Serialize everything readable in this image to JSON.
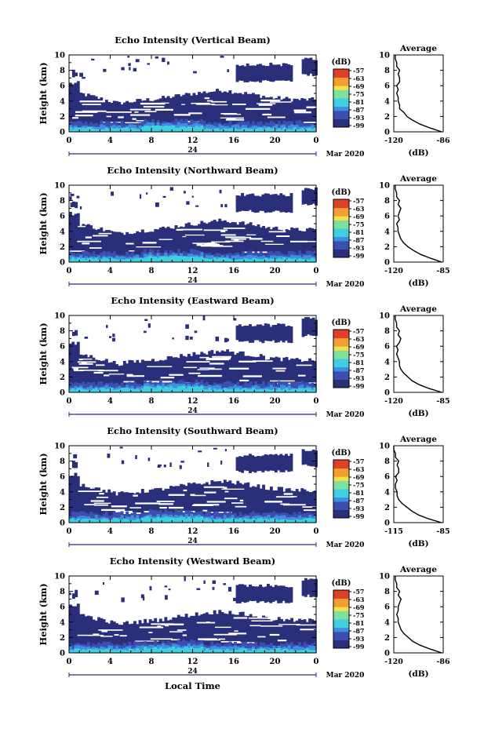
{
  "figure": {
    "xlabel": "Local Time",
    "date_label": "Mar 2020",
    "day_label": "24",
    "colorbar_unit": "(dB)",
    "colorbar_ticks": [
      "-57",
      "-63",
      "-69",
      "-75",
      "-81",
      "-87",
      "-93",
      "-99"
    ],
    "colors": {
      "echo": "#2a2f7a",
      "colorbar": [
        "#2a2f7a",
        "#3c4fb0",
        "#3f8fe0",
        "#3fd0e0",
        "#7fe09f",
        "#f0e04a",
        "#f0a030",
        "#e0402a"
      ]
    }
  },
  "chart_data": [
    {
      "type": "heatmap",
      "title": "Echo Intensity (Vertical Beam)",
      "ylabel": "Height (km)",
      "x_ticks": [
        "0",
        "4",
        "8",
        "12",
        "16",
        "20",
        "0"
      ],
      "y_ticks": [
        "0",
        "2",
        "4",
        "6",
        "8",
        "10"
      ],
      "xlim": [
        0,
        24
      ],
      "ylim": [
        0,
        10
      ],
      "profile": {
        "title": "Average",
        "xlabel": "(dB)",
        "x_ticks": [
          "-120",
          "-86"
        ],
        "y_ticks": [
          "0",
          "2",
          "4",
          "6",
          "8",
          "10"
        ],
        "xlim": [
          -120,
          -86
        ],
        "height": [
          0,
          0.5,
          1,
          1.5,
          2,
          2.5,
          3,
          3.5,
          4,
          4.5,
          5,
          5.5,
          6,
          6.5,
          7,
          7.5,
          8,
          8.5,
          9,
          9.5,
          10
        ],
        "value": [
          -87,
          -95,
          -102,
          -107,
          -111,
          -113,
          -116,
          -116,
          -117,
          -117,
          -118,
          -117,
          -118,
          -116,
          -116,
          -117,
          -116,
          -118,
          -118,
          -119,
          -119
        ]
      }
    },
    {
      "type": "heatmap",
      "title": "Echo Intensity (Northward Beam)",
      "ylabel": "Height (km)",
      "x_ticks": [
        "0",
        "4",
        "8",
        "12",
        "16",
        "20",
        "0"
      ],
      "y_ticks": [
        "0",
        "2",
        "4",
        "6",
        "8",
        "10"
      ],
      "xlim": [
        0,
        24
      ],
      "ylim": [
        0,
        10
      ],
      "profile": {
        "title": "Average",
        "xlabel": "(dB)",
        "x_ticks": [
          "-120",
          "-85"
        ],
        "y_ticks": [
          "0",
          "2",
          "4",
          "6",
          "8",
          "10"
        ],
        "xlim": [
          -120,
          -85
        ],
        "height": [
          0,
          0.5,
          1,
          1.5,
          2,
          2.5,
          3,
          3.5,
          4,
          4.5,
          5,
          5.5,
          6,
          6.5,
          7,
          7.5,
          8,
          8.5,
          9,
          9.5,
          10
        ],
        "value": [
          -86,
          -94,
          -101,
          -106,
          -110,
          -113,
          -115,
          -116,
          -117,
          -117,
          -118,
          -116,
          -117,
          -116,
          -115,
          -117,
          -116,
          -118,
          -118,
          -119,
          -119
        ]
      }
    },
    {
      "type": "heatmap",
      "title": "Echo Intensity (Eastward Beam)",
      "ylabel": "Height (km)",
      "x_ticks": [
        "0",
        "4",
        "8",
        "12",
        "16",
        "20",
        "0"
      ],
      "y_ticks": [
        "0",
        "2",
        "4",
        "6",
        "8",
        "10"
      ],
      "xlim": [
        0,
        24
      ],
      "ylim": [
        0,
        10
      ],
      "profile": {
        "title": "Average",
        "xlabel": "(dB)",
        "x_ticks": [
          "-120",
          "-85"
        ],
        "y_ticks": [
          "0",
          "2",
          "4",
          "6",
          "8",
          "10"
        ],
        "xlim": [
          -120,
          -85
        ],
        "height": [
          0,
          0.5,
          1,
          1.5,
          2,
          2.5,
          3,
          3.5,
          4,
          4.5,
          5,
          5.5,
          6,
          6.5,
          7,
          7.5,
          8,
          8.5,
          9,
          9.5,
          10
        ],
        "value": [
          -86,
          -95,
          -102,
          -107,
          -110,
          -113,
          -115,
          -116,
          -116,
          -117,
          -118,
          -117,
          -118,
          -116,
          -115,
          -117,
          -116,
          -118,
          -118,
          -119,
          -119
        ]
      }
    },
    {
      "type": "heatmap",
      "title": "Echo Intensity (Southward Beam)",
      "ylabel": "Height (km)",
      "x_ticks": [
        "0",
        "4",
        "8",
        "12",
        "16",
        "20",
        "0"
      ],
      "y_ticks": [
        "0",
        "2",
        "4",
        "6",
        "8",
        "10"
      ],
      "xlim": [
        0,
        24
      ],
      "ylim": [
        0,
        10
      ],
      "profile": {
        "title": "Average",
        "xlabel": "(dB)",
        "x_ticks": [
          "-115",
          "-85"
        ],
        "y_ticks": [
          "0",
          "2",
          "4",
          "6",
          "8",
          "10"
        ],
        "xlim": [
          -115,
          -85
        ],
        "height": [
          0,
          0.5,
          1,
          1.5,
          2,
          2.5,
          3,
          3.5,
          4,
          4.5,
          5,
          5.5,
          6,
          6.5,
          7,
          7.5,
          8,
          8.5,
          9,
          9.5,
          10
        ],
        "value": [
          -86,
          -94,
          -100,
          -104,
          -107,
          -110,
          -112,
          -113,
          -113,
          -114,
          -114,
          -113,
          -114,
          -112,
          -112,
          -113,
          -112,
          -114,
          -114,
          -115,
          -115
        ]
      }
    },
    {
      "type": "heatmap",
      "title": "Echo Intensity (Westward Beam)",
      "ylabel": "Height (km)",
      "x_ticks": [
        "0",
        "4",
        "8",
        "12",
        "16",
        "20",
        "0"
      ],
      "y_ticks": [
        "0",
        "2",
        "4",
        "6",
        "8",
        "10"
      ],
      "xlim": [
        0,
        24
      ],
      "ylim": [
        0,
        10
      ],
      "profile": {
        "title": "Average",
        "xlabel": "(dB)",
        "x_ticks": [
          "-120",
          "-86"
        ],
        "y_ticks": [
          "0",
          "2",
          "4",
          "6",
          "8",
          "10"
        ],
        "xlim": [
          -120,
          -86
        ],
        "height": [
          0,
          0.5,
          1,
          1.5,
          2,
          2.5,
          3,
          3.5,
          4,
          4.5,
          5,
          5.5,
          6,
          6.5,
          7,
          7.5,
          8,
          8.5,
          9,
          9.5,
          10
        ],
        "value": [
          -87,
          -95,
          -102,
          -107,
          -110,
          -113,
          -115,
          -116,
          -117,
          -117,
          -118,
          -117,
          -117,
          -116,
          -115,
          -117,
          -116,
          -118,
          -118,
          -119,
          -119
        ]
      }
    }
  ]
}
